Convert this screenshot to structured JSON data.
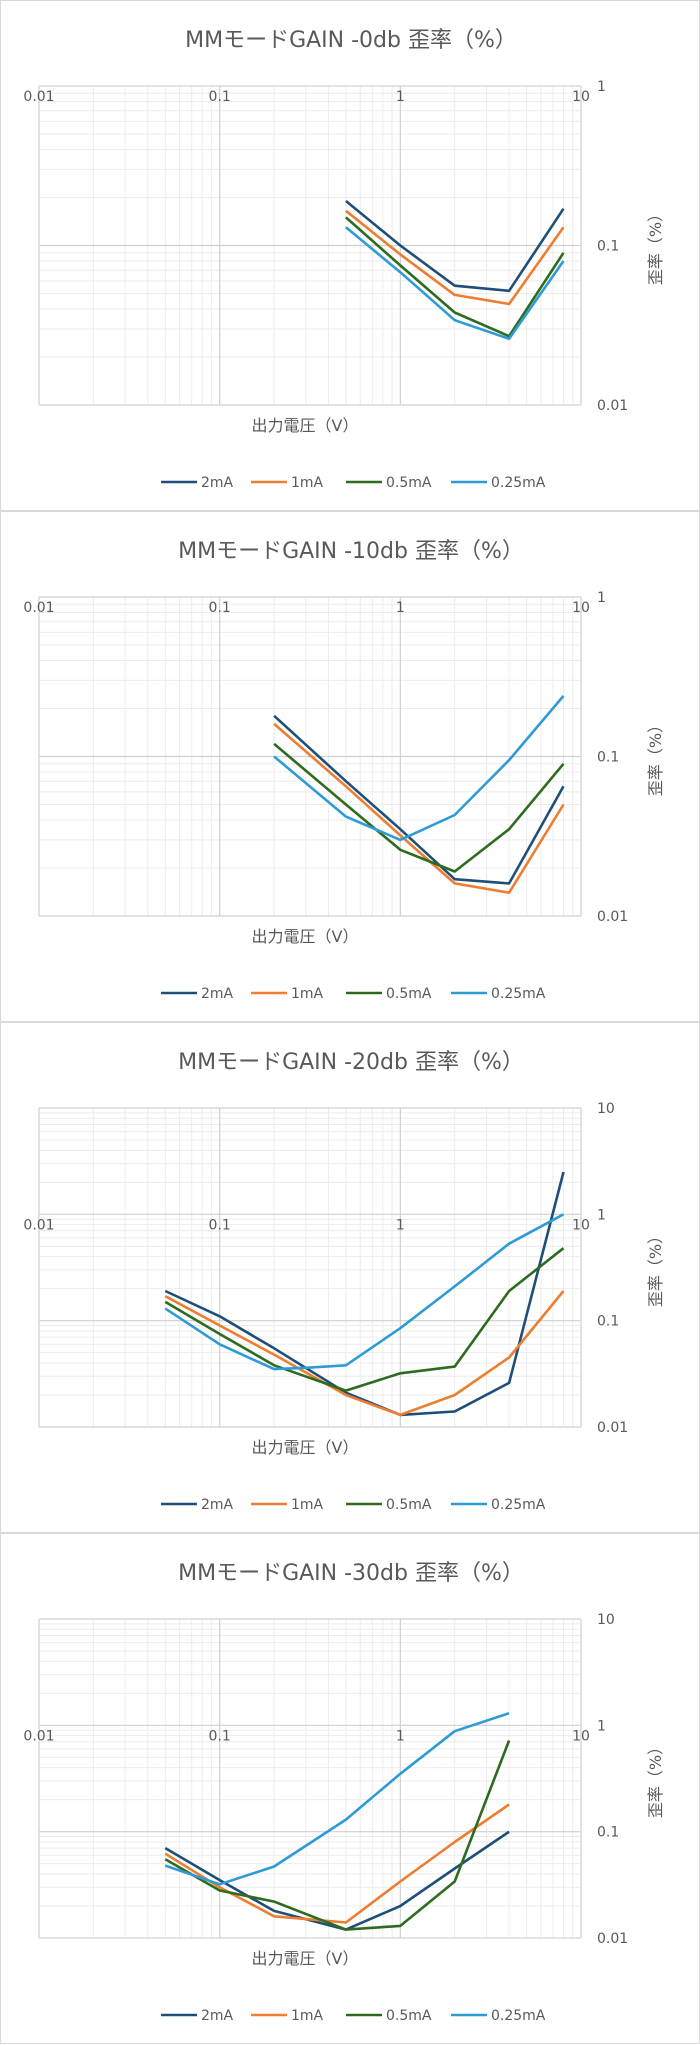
{
  "colors": {
    "2mA": "#1f4e79",
    "1mA": "#ed7d31",
    "0.5mA": "#2e6b1f",
    "0.25mA": "#2e9bd6",
    "grid_major": "#d0d0d0",
    "grid_minor": "#ececec",
    "text": "#595959"
  },
  "chart_data": [
    {
      "type": "line",
      "title": "MMモードGAIN -0db 歪率（%）",
      "xlabel": "出力電圧（V）",
      "ylabel": "歪率（%）",
      "x_scale": "log",
      "y_scale": "log",
      "xlim": [
        0.01,
        10
      ],
      "ylim": [
        0.01,
        1
      ],
      "x_ticks": [
        "0.01",
        "0.1",
        "1",
        "10"
      ],
      "y_ticks": [
        "1",
        "0.1",
        "0.01"
      ],
      "grid": true,
      "legend_position": "bottom",
      "series": [
        {
          "name": "2mA",
          "x": [
            0.5,
            1,
            2,
            4,
            8
          ],
          "y": [
            0.19,
            0.1,
            0.056,
            0.052,
            0.17
          ]
        },
        {
          "name": "1mA",
          "x": [
            0.5,
            1,
            2,
            4,
            8
          ],
          "y": [
            0.165,
            0.088,
            0.049,
            0.043,
            0.13
          ]
        },
        {
          "name": "0.5mA",
          "x": [
            0.5,
            1,
            2,
            4,
            8
          ],
          "y": [
            0.15,
            0.075,
            0.038,
            0.027,
            0.09
          ]
        },
        {
          "name": "0.25mA",
          "x": [
            0.5,
            1,
            2,
            4,
            8
          ],
          "y": [
            0.13,
            0.068,
            0.034,
            0.026,
            0.08
          ]
        }
      ]
    },
    {
      "type": "line",
      "title": "MMモードGAIN -10db 歪率（%）",
      "xlabel": "出力電圧（V）",
      "ylabel": "歪率（%）",
      "x_scale": "log",
      "y_scale": "log",
      "xlim": [
        0.01,
        10
      ],
      "ylim": [
        0.01,
        1
      ],
      "x_ticks": [
        "0.01",
        "0.1",
        "1",
        "10"
      ],
      "y_ticks": [
        "1",
        "0.1",
        "0.01"
      ],
      "grid": true,
      "legend_position": "bottom",
      "series": [
        {
          "name": "2mA",
          "x": [
            0.2,
            0.5,
            1,
            2,
            4,
            8
          ],
          "y": [
            0.18,
            0.07,
            0.035,
            0.017,
            0.016,
            0.065
          ]
        },
        {
          "name": "1mA",
          "x": [
            0.2,
            0.5,
            1,
            2,
            4,
            8
          ],
          "y": [
            0.16,
            0.065,
            0.032,
            0.016,
            0.014,
            0.05
          ]
        },
        {
          "name": "0.5mA",
          "x": [
            0.2,
            0.5,
            1,
            2,
            4,
            8
          ],
          "y": [
            0.12,
            0.05,
            0.026,
            0.019,
            0.035,
            0.09
          ]
        },
        {
          "name": "0.25mA",
          "x": [
            0.2,
            0.5,
            1,
            2,
            4,
            8
          ],
          "y": [
            0.1,
            0.042,
            0.03,
            0.043,
            0.095,
            0.24
          ]
        }
      ]
    },
    {
      "type": "line",
      "title": "MMモードGAIN -20db 歪率（%）",
      "xlabel": "出力電圧（V）",
      "ylabel": "歪率（%）",
      "x_scale": "log",
      "y_scale": "log",
      "xlim": [
        0.01,
        10
      ],
      "ylim": [
        0.01,
        10
      ],
      "x_ticks": [
        "0.01",
        "0.1",
        "1",
        "10"
      ],
      "y_ticks": [
        "10",
        "1",
        "0.1",
        "0.01"
      ],
      "grid": true,
      "legend_position": "bottom",
      "series": [
        {
          "name": "2mA",
          "x": [
            0.05,
            0.1,
            0.2,
            0.5,
            1,
            2,
            4,
            8
          ],
          "y": [
            0.19,
            0.11,
            0.055,
            0.021,
            0.013,
            0.014,
            0.026,
            2.5
          ]
        },
        {
          "name": "1mA",
          "x": [
            0.05,
            0.1,
            0.2,
            0.5,
            1,
            2,
            4,
            8
          ],
          "y": [
            0.17,
            0.09,
            0.048,
            0.02,
            0.013,
            0.02,
            0.045,
            0.19
          ]
        },
        {
          "name": "0.5mA",
          "x": [
            0.05,
            0.1,
            0.2,
            0.5,
            1,
            2,
            4,
            8
          ],
          "y": [
            0.15,
            0.075,
            0.038,
            0.022,
            0.032,
            0.037,
            0.19,
            0.48
          ]
        },
        {
          "name": "0.25mA",
          "x": [
            0.05,
            0.1,
            0.2,
            0.3,
            0.5,
            1,
            2,
            4,
            8
          ],
          "y": [
            0.13,
            0.06,
            0.035,
            0.036,
            0.038,
            0.085,
            0.21,
            0.53,
            1.0
          ]
        }
      ]
    },
    {
      "type": "line",
      "title": "MMモードGAIN -30db 歪率（%）",
      "xlabel": "出力電圧（V）",
      "ylabel": "歪率（%）",
      "x_scale": "log",
      "y_scale": "log",
      "xlim": [
        0.01,
        10
      ],
      "ylim": [
        0.01,
        10
      ],
      "x_ticks": [
        "0.01",
        "0.1",
        "1",
        "10"
      ],
      "y_ticks": [
        "10",
        "1",
        "0.1",
        "0.01"
      ],
      "grid": true,
      "legend_position": "bottom",
      "series": [
        {
          "name": "2mA",
          "x": [
            0.05,
            0.1,
            0.2,
            0.5,
            1,
            2,
            4
          ],
          "y": [
            0.07,
            0.035,
            0.018,
            0.012,
            0.02,
            0.045,
            0.1
          ]
        },
        {
          "name": "1mA",
          "x": [
            0.05,
            0.1,
            0.2,
            0.5,
            1,
            2,
            4
          ],
          "y": [
            0.062,
            0.03,
            0.016,
            0.014,
            0.034,
            0.08,
            0.18
          ]
        },
        {
          "name": "0.5mA",
          "x": [
            0.05,
            0.1,
            0.2,
            0.5,
            1,
            2,
            4
          ],
          "y": [
            0.055,
            0.028,
            0.022,
            0.012,
            0.013,
            0.034,
            0.72
          ]
        },
        {
          "name": "0.25mA",
          "x": [
            0.05,
            0.1,
            0.2,
            0.5,
            1,
            2,
            4
          ],
          "y": [
            0.048,
            0.032,
            0.047,
            0.13,
            0.35,
            0.88,
            1.3
          ]
        }
      ]
    }
  ]
}
